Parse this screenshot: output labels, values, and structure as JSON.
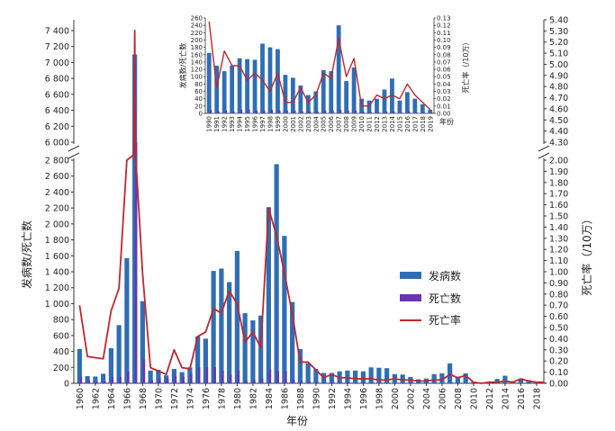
{
  "colors": {
    "cases": "#2f6eb5",
    "deaths": "#6a35b0",
    "rate": "#c0272d"
  },
  "chart_data": [
    {
      "type": "bar",
      "title": "",
      "xlabel": "年份",
      "ylabel_left": "发病数/死亡数",
      "ylabel_right": "死亡率（/10万）",
      "legend": {
        "position": "right",
        "cases": "发病数",
        "deaths": "死亡数",
        "rate": "死亡率"
      },
      "axis_break": {
        "lower_max": 2800,
        "upper_min": 6000,
        "upper_max": 7400
      },
      "right_ylim": [
        0,
        2.0
      ],
      "upper_right_range": [
        4.3,
        5.4
      ],
      "y_ticks_lower": [
        "0",
        "200",
        "400",
        "600",
        "800",
        "1 000",
        "1 200",
        "1 400",
        "1 600",
        "1 800",
        "2 000",
        "2 200",
        "2 400",
        "2 600",
        "2 800"
      ],
      "y_ticks_upper": [
        "6 000",
        "6 200",
        "6 400",
        "6 600",
        "6 800",
        "7 000",
        "7 200",
        "7 400"
      ],
      "right_ticks_lower": [
        "0.00",
        "0.10",
        "0.20",
        "0.30",
        "0.40",
        "0.50",
        "0.60",
        "0.70",
        "0.80",
        "0.90",
        "1.00",
        "1.10",
        "1.20",
        "1.30",
        "1.40",
        "1.50",
        "1.60",
        "1.70",
        "1.80",
        "1.90",
        "2.00"
      ],
      "right_ticks_upper": [
        "4.30",
        "4.40",
        "4.50",
        "4.60",
        "4.70",
        "4.80",
        "4.90",
        "5.00",
        "5.10",
        "5.20",
        "5.30",
        "5.40"
      ],
      "x_labels": [
        "1960",
        "1962",
        "1964",
        "1966",
        "1968",
        "1970",
        "1972",
        "1974",
        "1976",
        "1978",
        "1980",
        "1982",
        "1984",
        "1986",
        "1988",
        "1990",
        "1992",
        "1994",
        "1996",
        "1998",
        "2000",
        "2002",
        "2004",
        "2006",
        "2008",
        "2010",
        "2012",
        "2014",
        "2016",
        "2018"
      ],
      "years": [
        1960,
        1961,
        1962,
        1963,
        1964,
        1965,
        1966,
        1967,
        1968,
        1969,
        1970,
        1971,
        1972,
        1973,
        1974,
        1975,
        1976,
        1977,
        1978,
        1979,
        1980,
        1981,
        1982,
        1983,
        1984,
        1985,
        1986,
        1987,
        1988,
        1989,
        1990,
        1991,
        1992,
        1993,
        1994,
        1995,
        1996,
        1997,
        1998,
        1999,
        2000,
        2001,
        2002,
        2003,
        2004,
        2005,
        2006,
        2007,
        2008,
        2009,
        2010,
        2011,
        2012,
        2013,
        2014,
        2015,
        2016,
        2017,
        2018,
        2019
      ],
      "cases": [
        430,
        90,
        85,
        120,
        440,
        730,
        1570,
        7100,
        1030,
        160,
        170,
        100,
        180,
        140,
        200,
        590,
        560,
        1410,
        1440,
        1270,
        1660,
        880,
        790,
        850,
        2210,
        2750,
        1850,
        1020,
        430,
        250,
        180,
        130,
        130,
        150,
        160,
        160,
        150,
        200,
        195,
        190,
        115,
        110,
        80,
        50,
        60,
        115,
        125,
        250,
        80,
        125,
        20,
        5,
        20,
        55,
        95,
        25,
        60,
        40,
        10,
        10
      ],
      "deaths": [
        80,
        40,
        20,
        30,
        80,
        80,
        150,
        3700,
        300,
        40,
        60,
        60,
        90,
        80,
        120,
        200,
        200,
        200,
        160,
        110,
        160,
        30,
        40,
        60,
        170,
        150,
        150,
        40,
        30,
        20,
        15,
        10,
        10,
        10,
        10,
        10,
        10,
        10,
        10,
        10,
        10,
        10,
        10,
        5,
        5,
        5,
        5,
        10,
        5,
        5,
        5,
        2,
        2,
        2,
        5,
        2,
        2,
        2,
        2,
        2
      ],
      "rate": [
        0.7,
        0.24,
        0.23,
        0.22,
        0.65,
        0.85,
        2.0,
        5.4,
        0.98,
        0.14,
        0.11,
        0.08,
        0.3,
        0.14,
        0.13,
        0.42,
        0.46,
        0.67,
        0.63,
        0.83,
        0.71,
        0.37,
        0.46,
        0.32,
        1.57,
        1.32,
        0.99,
        0.62,
        0.19,
        0.19,
        0.12,
        0.05,
        0.08,
        0.05,
        0.05,
        0.04,
        0.04,
        0.04,
        0.03,
        0.03,
        0.04,
        0.03,
        0.03,
        0.02,
        0.02,
        0.03,
        0.03,
        0.08,
        0.05,
        0.07,
        0.01,
        0.0,
        0.01,
        0.01,
        0.02,
        0.01,
        0.04,
        0.02,
        0.01,
        0.01
      ]
    },
    {
      "type": "bar",
      "title": "",
      "xlabel": "年份",
      "ylabel_left": "发病数/死亡数",
      "ylabel_right": "死亡率（/10万）",
      "y_ticks": [
        "0",
        "20",
        "40",
        "60",
        "80",
        "100",
        "120",
        "140",
        "160",
        "180",
        "200",
        "220",
        "240",
        "260"
      ],
      "right_ticks": [
        "0.00",
        "0.01",
        "0.02",
        "0.03",
        "0.04",
        "0.05",
        "0.06",
        "0.07",
        "0.08",
        "0.09",
        "0.10",
        "0.11",
        "0.12",
        "0.13"
      ],
      "ylim": [
        0,
        260
      ],
      "right_ylim": [
        0,
        0.13
      ],
      "years": [
        "1990",
        "1991",
        "1992",
        "1993",
        "1994",
        "1995",
        "1996",
        "1997",
        "1998",
        "1999",
        "2000",
        "2001",
        "2002",
        "2003",
        "2004",
        "2005",
        "2006",
        "2007",
        "2008",
        "2009",
        "2010",
        "2011",
        "2012",
        "2013",
        "2014",
        "2015",
        "2016",
        "2017",
        "2018",
        "2019"
      ],
      "cases": [
        165,
        130,
        115,
        130,
        150,
        148,
        146,
        190,
        180,
        175,
        105,
        97,
        76,
        50,
        60,
        118,
        115,
        240,
        88,
        125,
        40,
        35,
        40,
        65,
        95,
        35,
        58,
        40,
        25,
        10
      ],
      "deaths": [
        10,
        5,
        8,
        5,
        10,
        10,
        8,
        8,
        10,
        8,
        8,
        8,
        5,
        5,
        5,
        8,
        8,
        10,
        8,
        8,
        5,
        3,
        3,
        5,
        5,
        2,
        5,
        2,
        2,
        2
      ],
      "rate": [
        0.125,
        0.035,
        0.085,
        0.065,
        0.065,
        0.045,
        0.055,
        0.045,
        0.03,
        0.055,
        0.015,
        0.015,
        0.035,
        0.015,
        0.025,
        0.055,
        0.048,
        0.102,
        0.05,
        0.075,
        0.01,
        0.01,
        0.025,
        0.02,
        0.025,
        0.02,
        0.04,
        0.025,
        0.015,
        0.005
      ]
    }
  ]
}
